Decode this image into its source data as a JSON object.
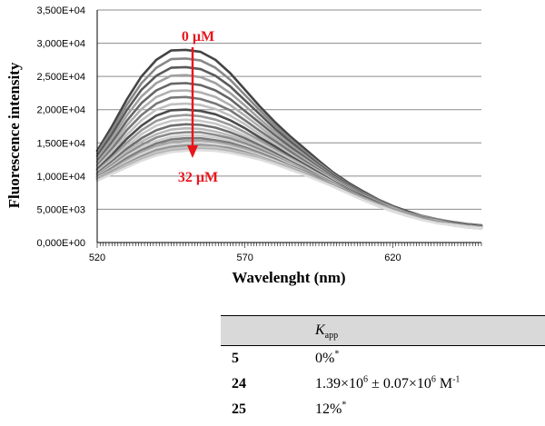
{
  "chart_data": {
    "type": "line",
    "xlabel": "Wavelenght (nm)",
    "ylabel": "Fluorescence intensity",
    "xlim": [
      520,
      650
    ],
    "ylim": [
      0,
      35000
    ],
    "x_ticks": [
      "520",
      "570",
      "620"
    ],
    "y_ticks": [
      "0,000E+00",
      "5,000E+03",
      "1,000E+04",
      "1,500E+04",
      "2,000E+04",
      "2,500E+04",
      "3,000E+04",
      "3,500E+04"
    ],
    "grid": "horizontal",
    "annotations": {
      "start": "0 µM",
      "end": "32 µM",
      "arrow_color": "#e8161c"
    },
    "x": [
      520,
      525,
      530,
      535,
      540,
      545,
      550,
      555,
      560,
      565,
      570,
      575,
      580,
      585,
      590,
      595,
      600,
      605,
      610,
      615,
      620,
      625,
      630,
      635,
      640,
      645,
      650
    ],
    "series": [
      {
        "values": [
          13800,
          17500,
          21500,
          25000,
          27500,
          28900,
          29000,
          28700,
          27500,
          25500,
          23000,
          20500,
          18200,
          16100,
          14200,
          12300,
          10500,
          9000,
          7700,
          6500,
          5500,
          4700,
          4000,
          3500,
          3100,
          2800,
          2600
        ],
        "color": "#444444"
      },
      {
        "values": [
          13400,
          16900,
          20700,
          24000,
          26300,
          27600,
          27700,
          27400,
          26300,
          24500,
          22200,
          19900,
          17700,
          15700,
          13800,
          12000,
          10300,
          8800,
          7500,
          6400,
          5400,
          4600,
          4000,
          3500,
          3100,
          2800,
          2600
        ],
        "color": "#888888"
      },
      {
        "values": [
          13000,
          16300,
          19900,
          23000,
          25100,
          26300,
          26400,
          26100,
          25100,
          23500,
          21400,
          19300,
          17200,
          15300,
          13500,
          11700,
          10100,
          8700,
          7400,
          6300,
          5400,
          4600,
          3900,
          3400,
          3000,
          2700,
          2500
        ],
        "color": "#5a5a5a"
      },
      {
        "values": [
          12600,
          15700,
          19100,
          22000,
          24000,
          25100,
          25200,
          24900,
          24000,
          22500,
          20600,
          18600,
          16700,
          14900,
          13200,
          11500,
          9900,
          8500,
          7300,
          6200,
          5300,
          4500,
          3900,
          3400,
          3000,
          2700,
          2500
        ],
        "color": "#a0a0a0"
      },
      {
        "values": [
          12200,
          15100,
          18300,
          21000,
          22900,
          23900,
          24000,
          23700,
          22900,
          21600,
          19800,
          18000,
          16200,
          14500,
          12900,
          11300,
          9800,
          8400,
          7200,
          6100,
          5200,
          4500,
          3800,
          3400,
          3000,
          2700,
          2500
        ],
        "color": "#666666"
      },
      {
        "values": [
          11900,
          14600,
          17600,
          20100,
          21900,
          22800,
          22900,
          22600,
          21900,
          20700,
          19100,
          17400,
          15700,
          14100,
          12600,
          11100,
          9600,
          8300,
          7100,
          6100,
          5200,
          4400,
          3800,
          3300,
          2900,
          2600,
          2400
        ],
        "color": "#b0b0b0"
      },
      {
        "values": [
          11600,
          14100,
          16900,
          19200,
          20900,
          21800,
          21900,
          21600,
          20900,
          19900,
          18400,
          16800,
          15300,
          13800,
          12300,
          10900,
          9500,
          8200,
          7000,
          6000,
          5100,
          4400,
          3800,
          3300,
          2900,
          2600,
          2400
        ],
        "color": "#777777"
      },
      {
        "values": [
          11300,
          13700,
          16200,
          18400,
          20000,
          20800,
          20900,
          20700,
          20100,
          19100,
          17800,
          16300,
          14900,
          13400,
          12000,
          10700,
          9400,
          8100,
          6900,
          5900,
          5100,
          4400,
          3700,
          3300,
          2900,
          2600,
          2400
        ],
        "color": "#c0c0c0"
      },
      {
        "values": [
          11000,
          13200,
          15600,
          17600,
          19100,
          19900,
          20000,
          19800,
          19300,
          18400,
          17200,
          15800,
          14500,
          13100,
          11800,
          10500,
          9200,
          8000,
          6900,
          5900,
          5000,
          4300,
          3700,
          3200,
          2900,
          2600,
          2400
        ],
        "color": "#4d4d4d"
      },
      {
        "values": [
          10800,
          12800,
          15000,
          16900,
          18300,
          19000,
          19200,
          19000,
          18500,
          17700,
          16600,
          15400,
          14100,
          12800,
          11600,
          10300,
          9100,
          7900,
          6800,
          5800,
          5000,
          4300,
          3700,
          3200,
          2800,
          2500,
          2300
        ],
        "color": "#999999"
      },
      {
        "values": [
          10600,
          12500,
          14500,
          16300,
          17600,
          18300,
          18500,
          18300,
          17900,
          17100,
          16100,
          15000,
          13800,
          12600,
          11400,
          10200,
          9000,
          7800,
          6700,
          5800,
          4900,
          4200,
          3600,
          3200,
          2800,
          2500,
          2300
        ],
        "color": "#c8c8c8"
      },
      {
        "values": [
          10400,
          12200,
          14100,
          15700,
          16900,
          17600,
          17800,
          17700,
          17300,
          16600,
          15700,
          14600,
          13500,
          12300,
          11200,
          10000,
          8900,
          7800,
          6700,
          5700,
          4900,
          4200,
          3600,
          3100,
          2800,
          2500,
          2300
        ],
        "color": "#6e6e6e"
      },
      {
        "values": [
          10200,
          11900,
          13700,
          15200,
          16300,
          17000,
          17200,
          17100,
          16700,
          16100,
          15300,
          14300,
          13200,
          12100,
          11000,
          9900,
          8800,
          7700,
          6600,
          5700,
          4900,
          4200,
          3600,
          3100,
          2800,
          2500,
          2300
        ],
        "color": "#b8b8b8"
      },
      {
        "values": [
          10100,
          11600,
          13300,
          14700,
          15800,
          16400,
          16600,
          16600,
          16200,
          15700,
          14900,
          14000,
          13000,
          11900,
          10900,
          9800,
          8700,
          7600,
          6600,
          5700,
          4900,
          4200,
          3600,
          3100,
          2700,
          2400,
          2200
        ],
        "color": "#8a8a8a"
      },
      {
        "values": [
          10000,
          11400,
          13000,
          14300,
          15300,
          15900,
          16100,
          16100,
          15800,
          15300,
          14600,
          13700,
          12800,
          11800,
          10800,
          9700,
          8700,
          7600,
          6600,
          5600,
          4800,
          4100,
          3500,
          3100,
          2700,
          2400,
          2200
        ],
        "color": "#d0d0d0"
      },
      {
        "values": [
          9900,
          11200,
          12700,
          13900,
          14900,
          15500,
          15700,
          15700,
          15400,
          15000,
          14300,
          13500,
          12600,
          11600,
          10700,
          9700,
          8600,
          7600,
          6500,
          5600,
          4800,
          4100,
          3500,
          3100,
          2700,
          2400,
          2200
        ],
        "color": "#7a7a7a"
      },
      {
        "values": [
          9800,
          11000,
          12400,
          13600,
          14500,
          15100,
          15300,
          15300,
          15100,
          14700,
          14100,
          13300,
          12400,
          11500,
          10600,
          9600,
          8600,
          7500,
          6500,
          5600,
          4800,
          4100,
          3500,
          3000,
          2700,
          2400,
          2200
        ],
        "color": "#a8a8a8"
      },
      {
        "values": [
          9700,
          10800,
          12100,
          13300,
          14200,
          14700,
          14900,
          15000,
          14800,
          14400,
          13800,
          13100,
          12300,
          11400,
          10500,
          9500,
          8500,
          7500,
          6500,
          5600,
          4800,
          4100,
          3500,
          3000,
          2700,
          2400,
          2200
        ],
        "color": "#d8d8d8"
      },
      {
        "values": [
          9600,
          10700,
          11900,
          13000,
          13900,
          14400,
          14600,
          14700,
          14500,
          14200,
          13600,
          12900,
          12100,
          11300,
          10400,
          9500,
          8500,
          7500,
          6500,
          5500,
          4700,
          4000,
          3500,
          3000,
          2600,
          2300,
          2100
        ],
        "color": "#959595"
      },
      {
        "values": [
          9500,
          10500,
          11700,
          12700,
          13600,
          14100,
          14300,
          14400,
          14300,
          13900,
          13400,
          12800,
          12000,
          11200,
          10300,
          9400,
          8400,
          7400,
          6400,
          5500,
          4700,
          4000,
          3400,
          3000,
          2600,
          2300,
          2100
        ],
        "color": "#c4c4c4"
      },
      {
        "values": [
          9400,
          10400,
          11500,
          12500,
          13300,
          13800,
          14000,
          14100,
          14000,
          13700,
          13200,
          12600,
          11900,
          11100,
          10300,
          9400,
          8400,
          7400,
          6400,
          5500,
          4700,
          4000,
          3400,
          3000,
          2600,
          2300,
          2100
        ],
        "color": "#b4b4b4"
      },
      {
        "values": [
          9300,
          10300,
          11300,
          12300,
          13100,
          13600,
          13800,
          13900,
          13800,
          13500,
          13000,
          12500,
          11800,
          11000,
          10200,
          9300,
          8400,
          7400,
          6400,
          5500,
          4700,
          4000,
          3400,
          2900,
          2600,
          2300,
          2100
        ],
        "color": "#dedede"
      }
    ]
  },
  "table": {
    "header": {
      "col1": "",
      "k_symbol": "K",
      "k_sub": "app"
    },
    "rows": [
      {
        "compound": "5",
        "k_main": "0%",
        "k_sup": "*",
        "k_suffix": ""
      },
      {
        "compound": "24",
        "k_main": "1.39×10",
        "k_sup": "6",
        "k_suffix": " ± 0.07×10",
        "k_sup2": "6",
        "k_suffix2": " M",
        "k_sup3": "-1"
      },
      {
        "compound": "25",
        "k_main": "12%",
        "k_sup": "*",
        "k_suffix": ""
      }
    ]
  }
}
